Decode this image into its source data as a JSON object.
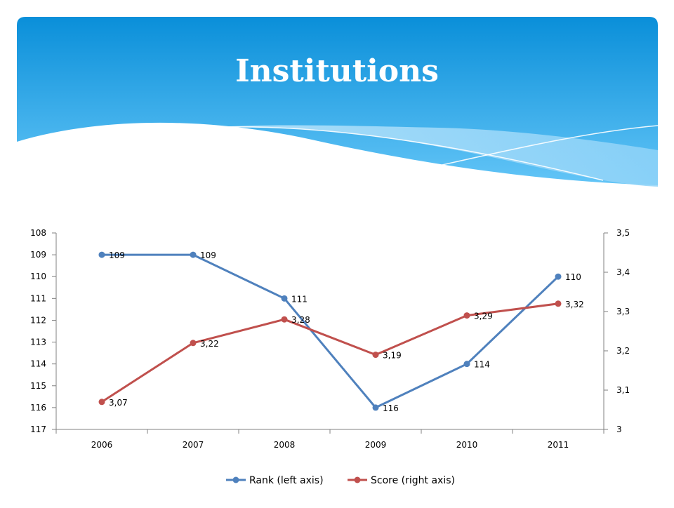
{
  "slide": {
    "title": "Institutions"
  },
  "colors": {
    "header_top": "#0a8fd9",
    "header_bottom": "#5fc0f5",
    "rank": "#4f81bd",
    "score": "#c0504d",
    "axis": "#808080"
  },
  "chart_data": {
    "type": "line",
    "categories": [
      "2006",
      "2007",
      "2008",
      "2009",
      "2010",
      "2011"
    ],
    "left_axis": {
      "min": 108,
      "max": 117,
      "step": 1,
      "reversed": true,
      "ticks": [
        "108",
        "109",
        "110",
        "111",
        "112",
        "113",
        "114",
        "115",
        "116",
        "117"
      ]
    },
    "right_axis": {
      "min": 3,
      "max": 3.5,
      "step": 0.1,
      "ticks": [
        "3,5",
        "3,4",
        "3,3",
        "3,2",
        "3,1",
        "3"
      ]
    },
    "series": [
      {
        "name": "Rank (left axis)",
        "axis": "left",
        "color": "#4f81bd",
        "values": [
          109,
          109,
          111,
          116,
          114,
          110
        ],
        "labels": [
          "109",
          "109",
          "111",
          "116",
          "114",
          "110"
        ]
      },
      {
        "name": "Score (right axis)",
        "axis": "right",
        "color": "#c0504d",
        "values": [
          3.07,
          3.22,
          3.28,
          3.19,
          3.29,
          3.32
        ],
        "labels": [
          "3,07",
          "3,22",
          "3,28",
          "3,19",
          "3,29",
          "3,32"
        ]
      }
    ],
    "grid": false,
    "legend": "bottom"
  }
}
